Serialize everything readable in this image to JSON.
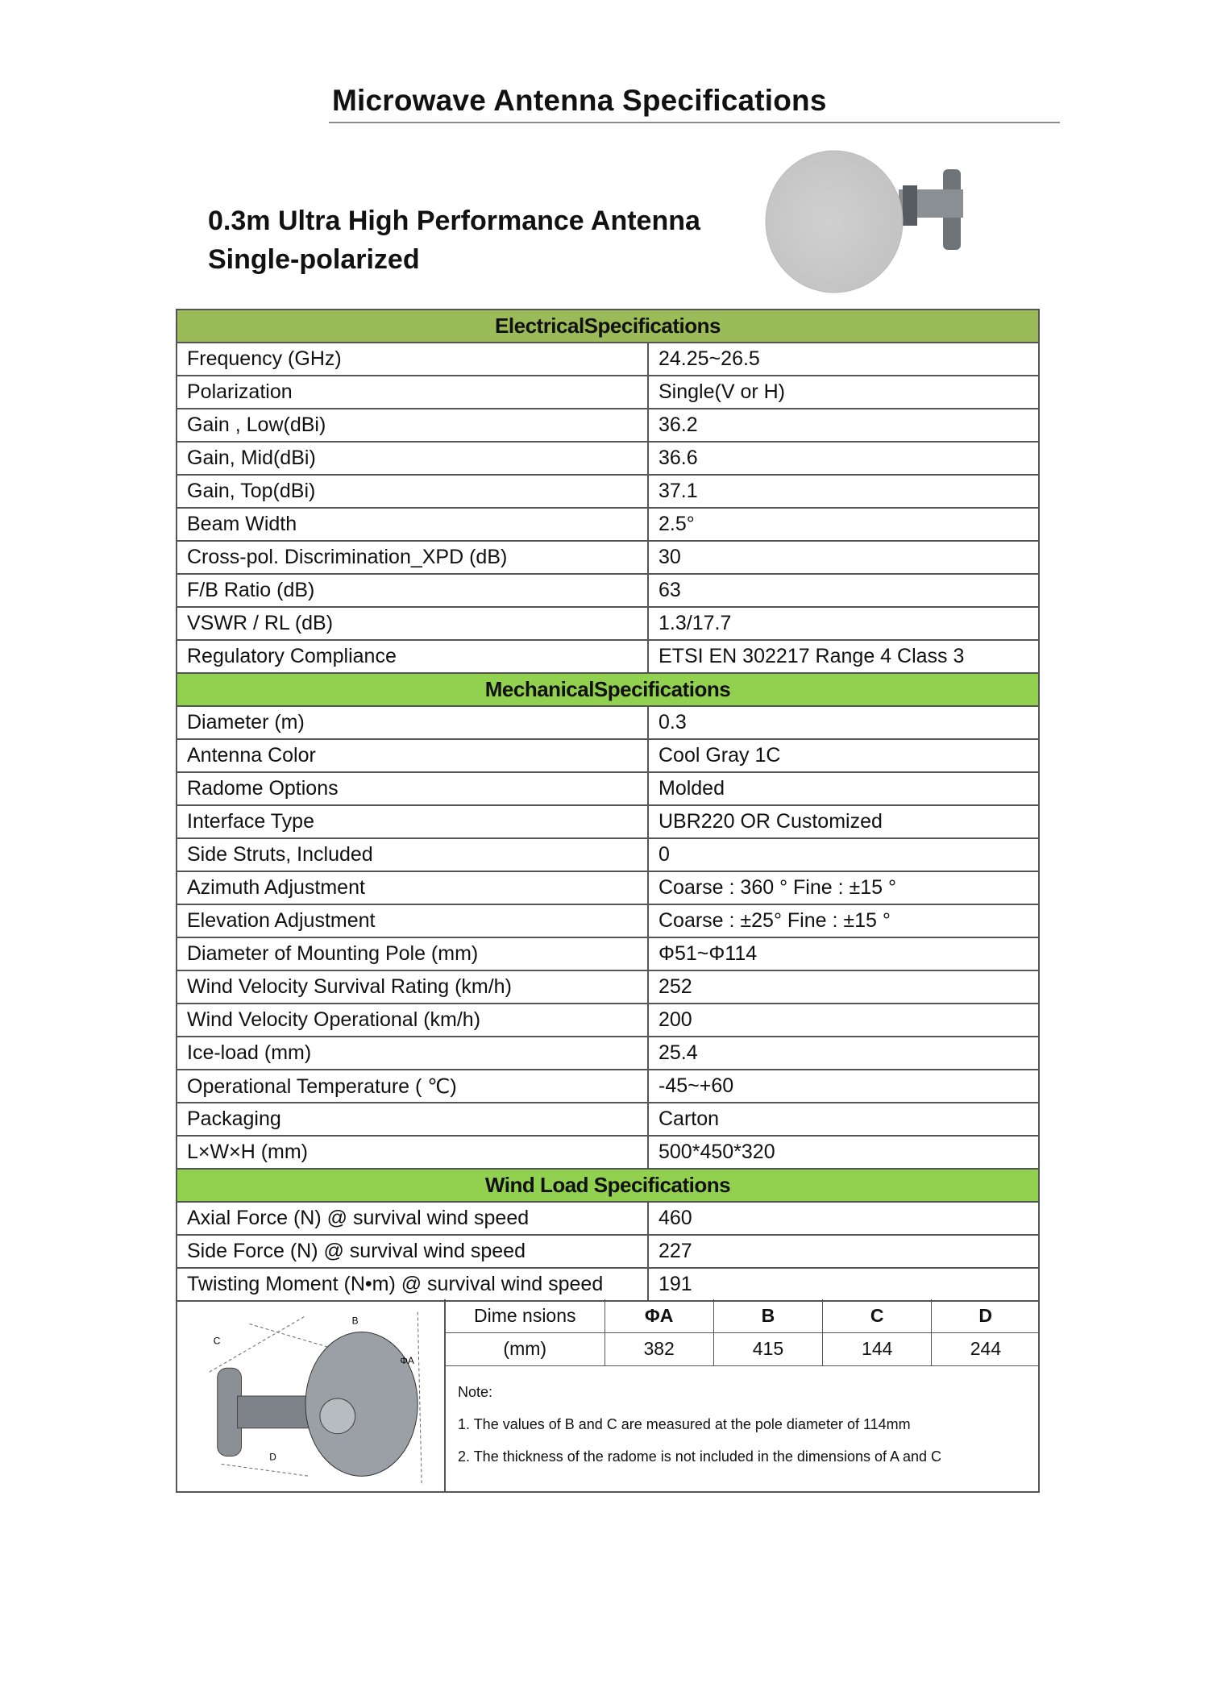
{
  "title": "Microwave Antenna Specifications",
  "subtitle": {
    "line1": "0.3m Ultra High Performance Antenna",
    "line2": "Single-polarized"
  },
  "sections": [
    {
      "title": "ElectricalSpecifications",
      "rows": [
        [
          "Frequency (GHz)",
          "24.25~26.5"
        ],
        [
          "Polarization",
          "Single(V or H)"
        ],
        [
          "Gain , Low(dBi)",
          "36.2"
        ],
        [
          "Gain, Mid(dBi)",
          "36.6"
        ],
        [
          "Gain, Top(dBi)",
          "37.1"
        ],
        [
          "Beam Width",
          "2.5°"
        ],
        [
          "Cross-pol. Discrimination_XPD (dB)",
          "30"
        ],
        [
          "F/B Ratio (dB)",
          "63"
        ],
        [
          "VSWR / RL (dB)",
          "1.3/17.7"
        ],
        [
          "Regulatory Compliance",
          "ETSI EN 302217 Range 4 Class 3"
        ]
      ]
    },
    {
      "title": "MechanicalSpecifications",
      "rows": [
        [
          "Diameter (m)",
          "0.3"
        ],
        [
          "Antenna Color",
          "Cool Gray 1C"
        ],
        [
          "Radome Options",
          "Molded"
        ],
        [
          "Interface Type",
          "UBR220 OR Customized"
        ],
        [
          "Side Struts, Included",
          "0"
        ],
        [
          "Azimuth Adjustment",
          "Coarse : 360 ° Fine : ±15 °"
        ],
        [
          "Elevation Adjustment",
          "Coarse : ±25° Fine : ±15 °"
        ],
        [
          "Diameter of Mounting Pole (mm)",
          "Φ51~Φ114"
        ],
        [
          "Wind Velocity Survival Rating (km/h)",
          "252"
        ],
        [
          "Wind Velocity Operational (km/h)",
          "200"
        ],
        [
          "Ice-load (mm)",
          "25.4"
        ],
        [
          "Operational Temperature (   ℃)",
          "-45~+60"
        ],
        [
          "Packaging",
          "Carton"
        ],
        [
          "L×W×H (mm)",
          "500*450*320"
        ]
      ]
    },
    {
      "title": "Wind Load Specifications",
      "rows": [
        [
          "Axial Force (N) @ survival wind speed",
          "460"
        ],
        [
          "Side Force (N) @ survival wind speed",
          "227"
        ],
        [
          "Twisting Moment (N•m) @ survival wind speed",
          "191"
        ]
      ]
    }
  ],
  "dimensions": {
    "label1": "Dime nsions",
    "label2": "(mm)",
    "headers": [
      "ΦA",
      "B",
      "C",
      "D"
    ],
    "values": [
      "382",
      "415",
      "144",
      "244"
    ],
    "diagram_labels": {
      "a": "ΦA",
      "b": "B",
      "c": "C",
      "d": "D"
    }
  },
  "notes": {
    "heading": "Note:",
    "items": [
      "1. The values of B and C are measured at the pole diameter of 114mm",
      "2. The thickness of the radome is not included in the dimensions of A and C"
    ]
  },
  "colors": {
    "electrical_header": "#9bbb59",
    "mechanical_header": "#92d050",
    "windload_header": "#92d050"
  }
}
